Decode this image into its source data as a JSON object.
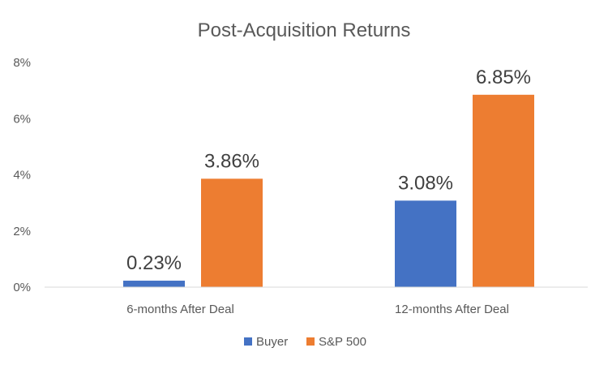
{
  "chart_data": {
    "type": "bar",
    "title": "Post-Acquisition Returns",
    "xlabel": "",
    "ylabel": "",
    "categories": [
      "6-months After Deal",
      "12-months After Deal"
    ],
    "series": [
      {
        "name": "Buyer",
        "color": "#4472C4",
        "values": [
          0.23,
          3.08
        ],
        "labels": [
          "0.23%",
          "3.08%"
        ]
      },
      {
        "name": "S&P 500",
        "color": "#ED7D31",
        "values": [
          3.86,
          6.85
        ],
        "labels": [
          "3.86%",
          "6.85%"
        ]
      }
    ],
    "ylim": [
      0,
      8
    ],
    "yticks": [
      0,
      2,
      4,
      6,
      8
    ],
    "ytick_labels": [
      "0%",
      "2%",
      "4%",
      "6%",
      "8%"
    ],
    "grid": false,
    "legend_position": "bottom"
  }
}
